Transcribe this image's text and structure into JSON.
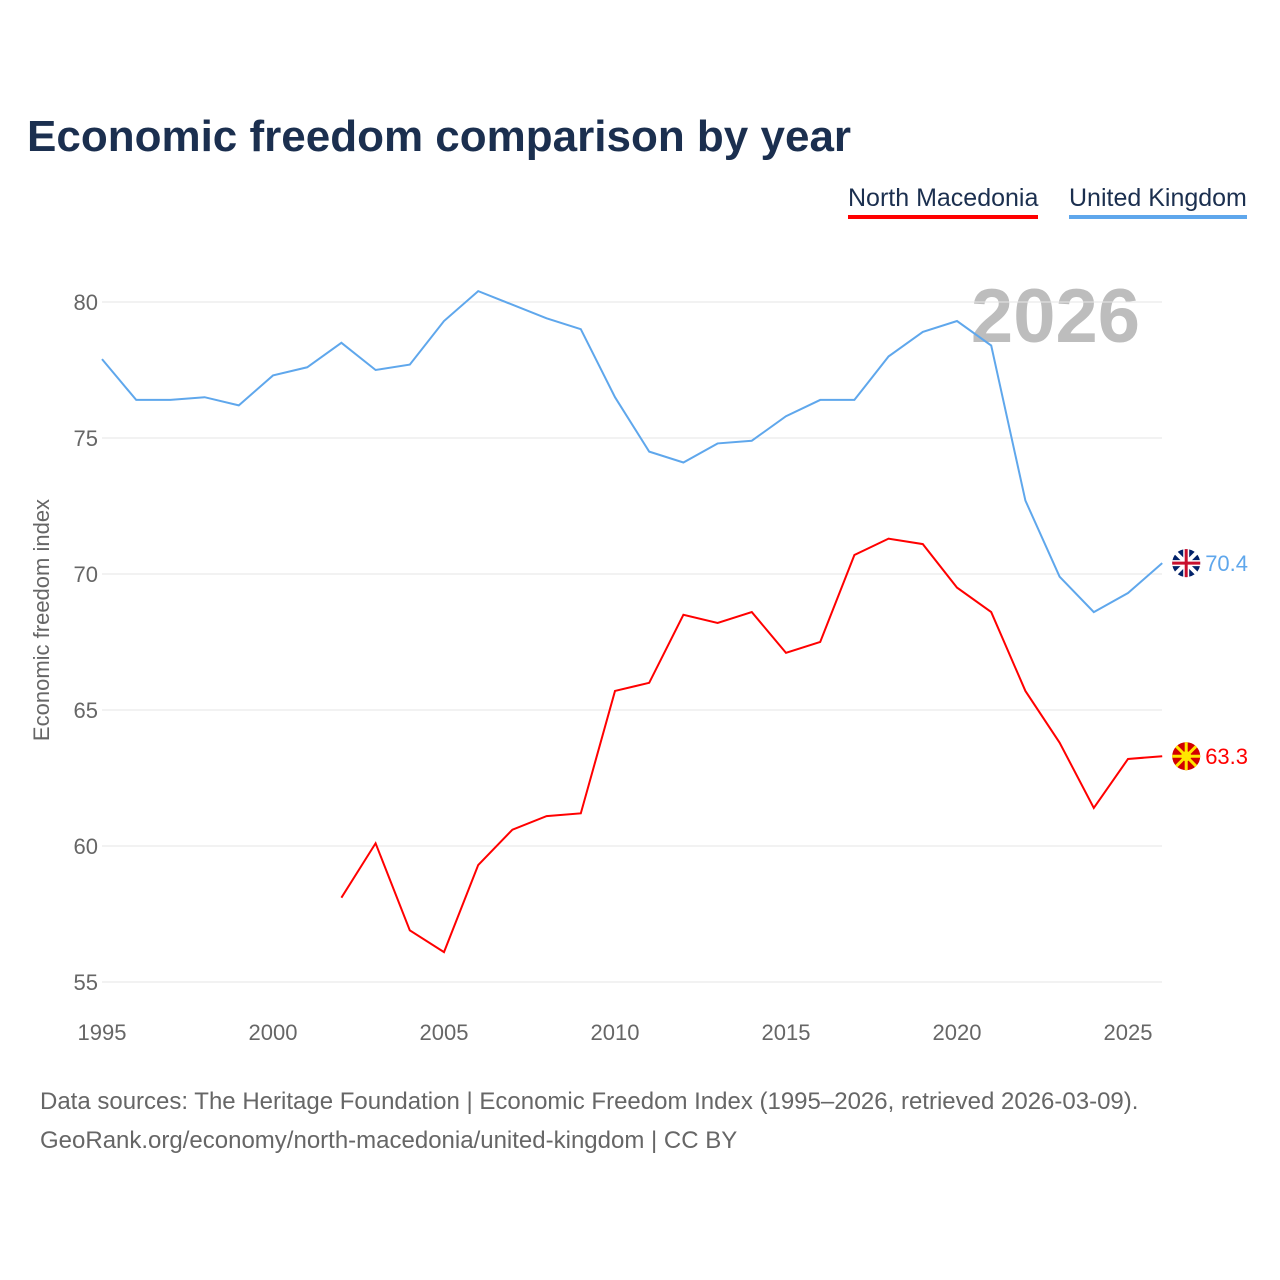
{
  "chart_data": {
    "type": "line",
    "title": "Economic freedom comparison by year",
    "ylabel": "Economic freedom index",
    "xlabel": "",
    "xlim": [
      1995,
      2026
    ],
    "ylim": [
      55,
      81
    ],
    "yticks": [
      55,
      60,
      65,
      70,
      75,
      80
    ],
    "xticks": [
      1995,
      2000,
      2005,
      2010,
      2015,
      2020,
      2025
    ],
    "grid": true,
    "legend_position": "top-right",
    "year_label": "2026",
    "series": [
      {
        "name": "North Macedonia",
        "color": "#ff0000",
        "end_label": "63.3",
        "x": [
          2002,
          2003,
          2004,
          2005,
          2006,
          2007,
          2008,
          2009,
          2010,
          2011,
          2012,
          2013,
          2014,
          2015,
          2016,
          2017,
          2018,
          2019,
          2020,
          2021,
          2022,
          2023,
          2024,
          2025,
          2026
        ],
        "values": [
          58.1,
          60.1,
          56.9,
          56.1,
          59.3,
          60.6,
          61.1,
          61.2,
          65.7,
          66.0,
          68.5,
          68.2,
          68.6,
          67.1,
          67.5,
          70.7,
          71.3,
          71.1,
          69.5,
          68.6,
          65.7,
          63.8,
          61.4,
          63.2,
          63.3
        ]
      },
      {
        "name": "United Kingdom",
        "color": "#5fa7ec",
        "end_label": "70.4",
        "x": [
          1995,
          1996,
          1997,
          1998,
          1999,
          2000,
          2001,
          2002,
          2003,
          2004,
          2005,
          2006,
          2007,
          2008,
          2009,
          2010,
          2011,
          2012,
          2013,
          2014,
          2015,
          2016,
          2017,
          2018,
          2019,
          2020,
          2021,
          2022,
          2023,
          2024,
          2025,
          2026
        ],
        "values": [
          77.9,
          76.4,
          76.4,
          76.5,
          76.2,
          77.3,
          77.6,
          78.5,
          77.5,
          77.7,
          79.3,
          80.4,
          79.9,
          79.4,
          79.0,
          76.5,
          74.5,
          74.1,
          74.8,
          74.9,
          75.8,
          76.4,
          76.4,
          78.0,
          78.9,
          79.3,
          78.4,
          72.7,
          69.9,
          68.6,
          69.3,
          70.4
        ]
      }
    ]
  },
  "footer": {
    "line1": "Data sources: The Heritage Foundation | Economic Freedom Index (1995–2026, retrieved 2026-03-09).",
    "line2": "GeoRank.org/economy/north-macedonia/united-kingdom | CC BY"
  }
}
